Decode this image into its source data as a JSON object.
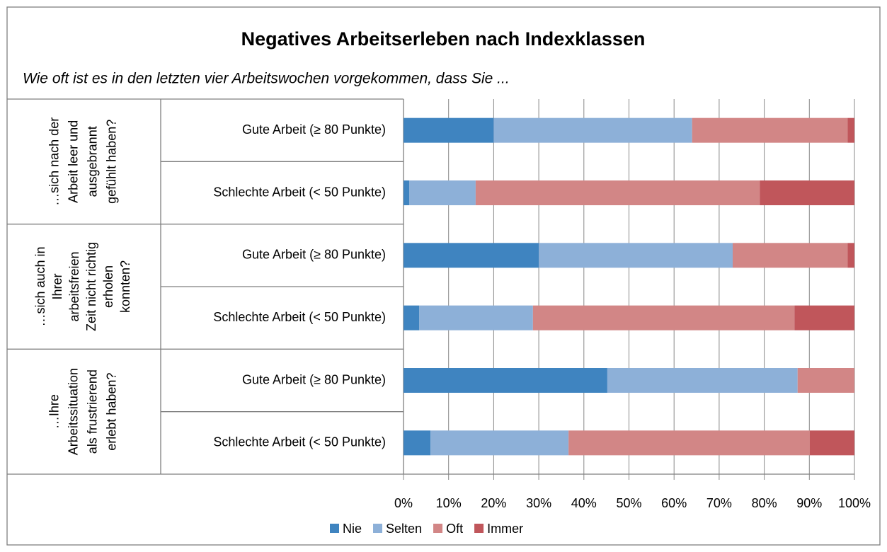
{
  "chart_data": {
    "type": "stacked_barh",
    "title": "Negatives Arbeitserleben nach Indexklassen",
    "subtitle": "Wie oft ist es in den letzten vier Arbeitswochen vorgekommen, dass Sie ...",
    "groups": [
      {
        "lines": [
          "…sich nach der",
          "Arbeit leer und",
          "ausgebrannt",
          "gefühlt haben?"
        ]
      },
      {
        "lines": [
          "…sich auch in",
          "Ihrer",
          "arbeitsfreien",
          "Zeit nicht richtig",
          "erholen",
          "konnten?"
        ]
      },
      {
        "lines": [
          "…Ihre",
          "Arbeitssituation",
          "als frustrierend",
          "erlebt haben?"
        ]
      }
    ],
    "categories": [
      "Gute Arbeit (≥ 80 Punkte)",
      "Schlechte Arbeit (< 50 Punkte)",
      "Gute Arbeit (≥ 80 Punkte)",
      "Schlechte Arbeit (< 50 Punkte)",
      "Gute Arbeit (≥ 80 Punkte)",
      "Schlechte Arbeit (< 50 Punkte)"
    ],
    "series": [
      {
        "name": "Nie",
        "color": "#3f84c0",
        "values": [
          20,
          1.3,
          30,
          3.5,
          45.2,
          6
        ]
      },
      {
        "name": "Selten",
        "color": "#8db0d8",
        "values": [
          44,
          14.7,
          43,
          25.2,
          42.2,
          30.6
        ]
      },
      {
        "name": "Oft",
        "color": "#d28686",
        "values": [
          34.5,
          63,
          25.5,
          58,
          12.6,
          53.5
        ]
      },
      {
        "name": "Immer",
        "color": "#c0565b",
        "values": [
          1.5,
          21,
          1.5,
          13.3,
          0,
          9.9
        ]
      }
    ],
    "xlim": [
      0,
      100
    ],
    "xticks": [
      {
        "value": 0,
        "label": "0%"
      },
      {
        "value": 10,
        "label": "10%"
      },
      {
        "value": 20,
        "label": "20%"
      },
      {
        "value": 30,
        "label": "30%"
      },
      {
        "value": 40,
        "label": "40%"
      },
      {
        "value": 50,
        "label": "50%"
      },
      {
        "value": 60,
        "label": "60%"
      },
      {
        "value": 70,
        "label": "70%"
      },
      {
        "value": 80,
        "label": "80%"
      },
      {
        "value": 90,
        "label": "90%"
      },
      {
        "value": 100,
        "label": "100%"
      }
    ],
    "grid": true,
    "legend": "bottom"
  }
}
